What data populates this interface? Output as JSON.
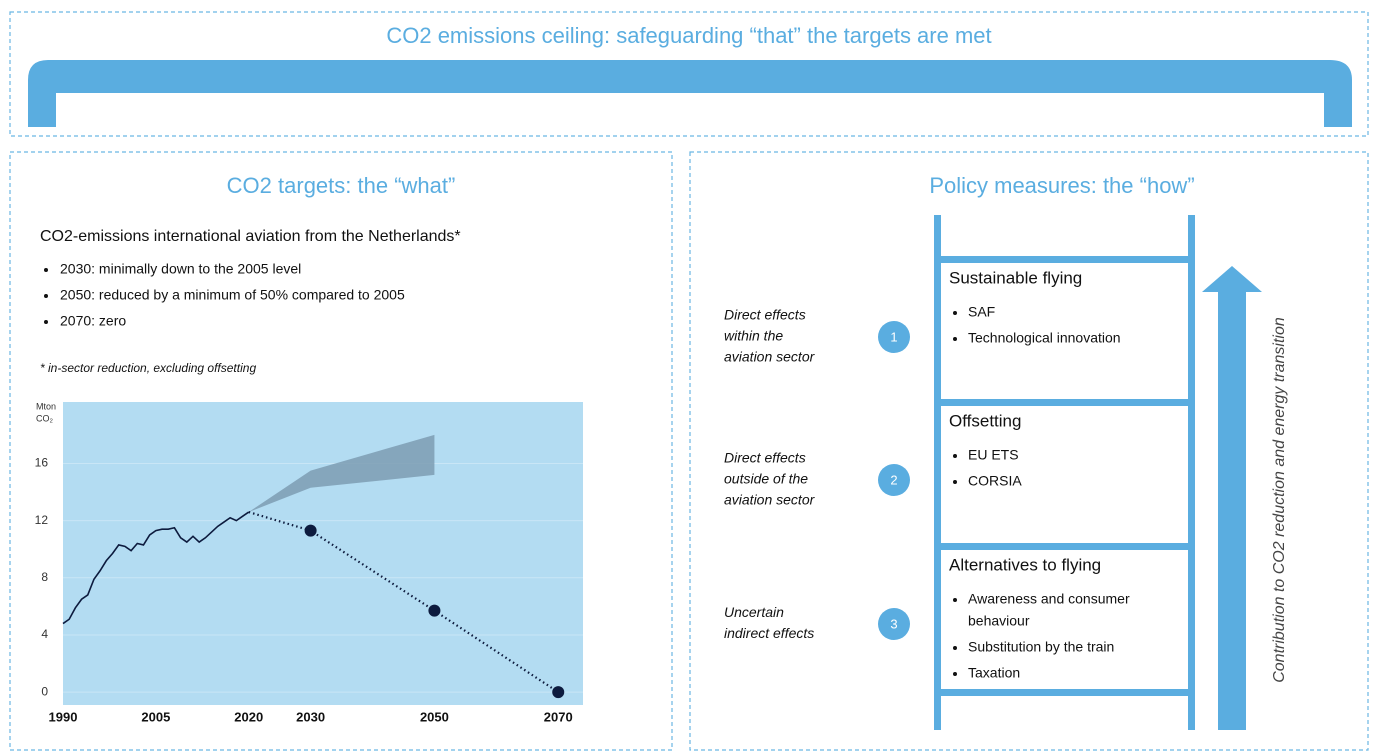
{
  "header": {
    "title": "CO2 emissions ceiling: safeguarding “that” the targets are met"
  },
  "targets": {
    "title": "CO2 targets: the “what”",
    "subtitle": "CO2-emissions international aviation from the Netherlands*",
    "bullets": [
      "2030: minimally down to the 2005 level",
      "2050: reduced by a minimum of 50% compared to 2005",
      "2070: zero"
    ],
    "footnote": "* in-sector reduction, excluding offsetting",
    "chart": {
      "type": "line",
      "ylabel": [
        "Mton",
        "CO₂"
      ],
      "xlim": [
        1990,
        2074
      ],
      "xticks": [
        1990,
        2005,
        2020,
        2030,
        2050,
        2070
      ],
      "ylim": [
        -0.9,
        20.3
      ],
      "yticks": [
        0,
        4,
        8,
        12,
        16
      ],
      "grid": true,
      "background": "#b3dcf2",
      "history": {
        "color": "#0d1b3e",
        "x": [
          1990,
          1991,
          1992,
          1993,
          1994,
          1995,
          1996,
          1997,
          1998,
          1999,
          2000,
          2001,
          2002,
          2003,
          2004,
          2005,
          2006,
          2007,
          2008,
          2009,
          2010,
          2011,
          2012,
          2013,
          2014,
          2015,
          2016,
          2017,
          2018,
          2019,
          2020
        ],
        "values": [
          4.8,
          5.1,
          5.9,
          6.5,
          6.8,
          7.9,
          8.5,
          9.2,
          9.7,
          10.3,
          10.2,
          9.9,
          10.4,
          10.3,
          11.0,
          11.3,
          11.4,
          11.4,
          11.5,
          10.8,
          10.5,
          10.9,
          10.5,
          10.8,
          11.2,
          11.6,
          11.9,
          12.2,
          12.0,
          12.3,
          12.6
        ]
      },
      "path": {
        "color": "#0d1b3e",
        "x": [
          2020,
          2030,
          2050,
          2070
        ],
        "values": [
          12.6,
          11.3,
          5.7,
          0
        ],
        "markers": [
          false,
          true,
          true,
          true
        ]
      },
      "projection": {
        "color": "#7d9cb3",
        "x": [
          2020,
          2030,
          2050
        ],
        "upper": [
          12.6,
          15.5,
          18.0
        ],
        "lower": [
          12.6,
          14.3,
          15.2
        ]
      }
    }
  },
  "measures": {
    "title": "Policy measures: the “how”",
    "levels": [
      {
        "number": "1",
        "effect": [
          "Direct effects",
          "within the",
          "aviation sector"
        ],
        "title": "Sustainable flying",
        "bullets": [
          [
            "SAF"
          ],
          [
            "Technological innovation"
          ]
        ]
      },
      {
        "number": "2",
        "effect": [
          "Direct effects",
          "outside of the",
          "aviation sector"
        ],
        "title": "Offsetting",
        "bullets": [
          [
            "EU ETS"
          ],
          [
            "CORSIA"
          ]
        ]
      },
      {
        "number": "3",
        "effect": [
          "Uncertain",
          "indirect effects"
        ],
        "title": "Alternatives to flying",
        "bullets": [
          [
            "Awareness and consumer",
            "behaviour"
          ],
          [
            "Substitution by the train"
          ],
          [
            "Taxation"
          ]
        ]
      }
    ],
    "arrow_label": "Contribution to CO2 reduction and energy transition"
  }
}
